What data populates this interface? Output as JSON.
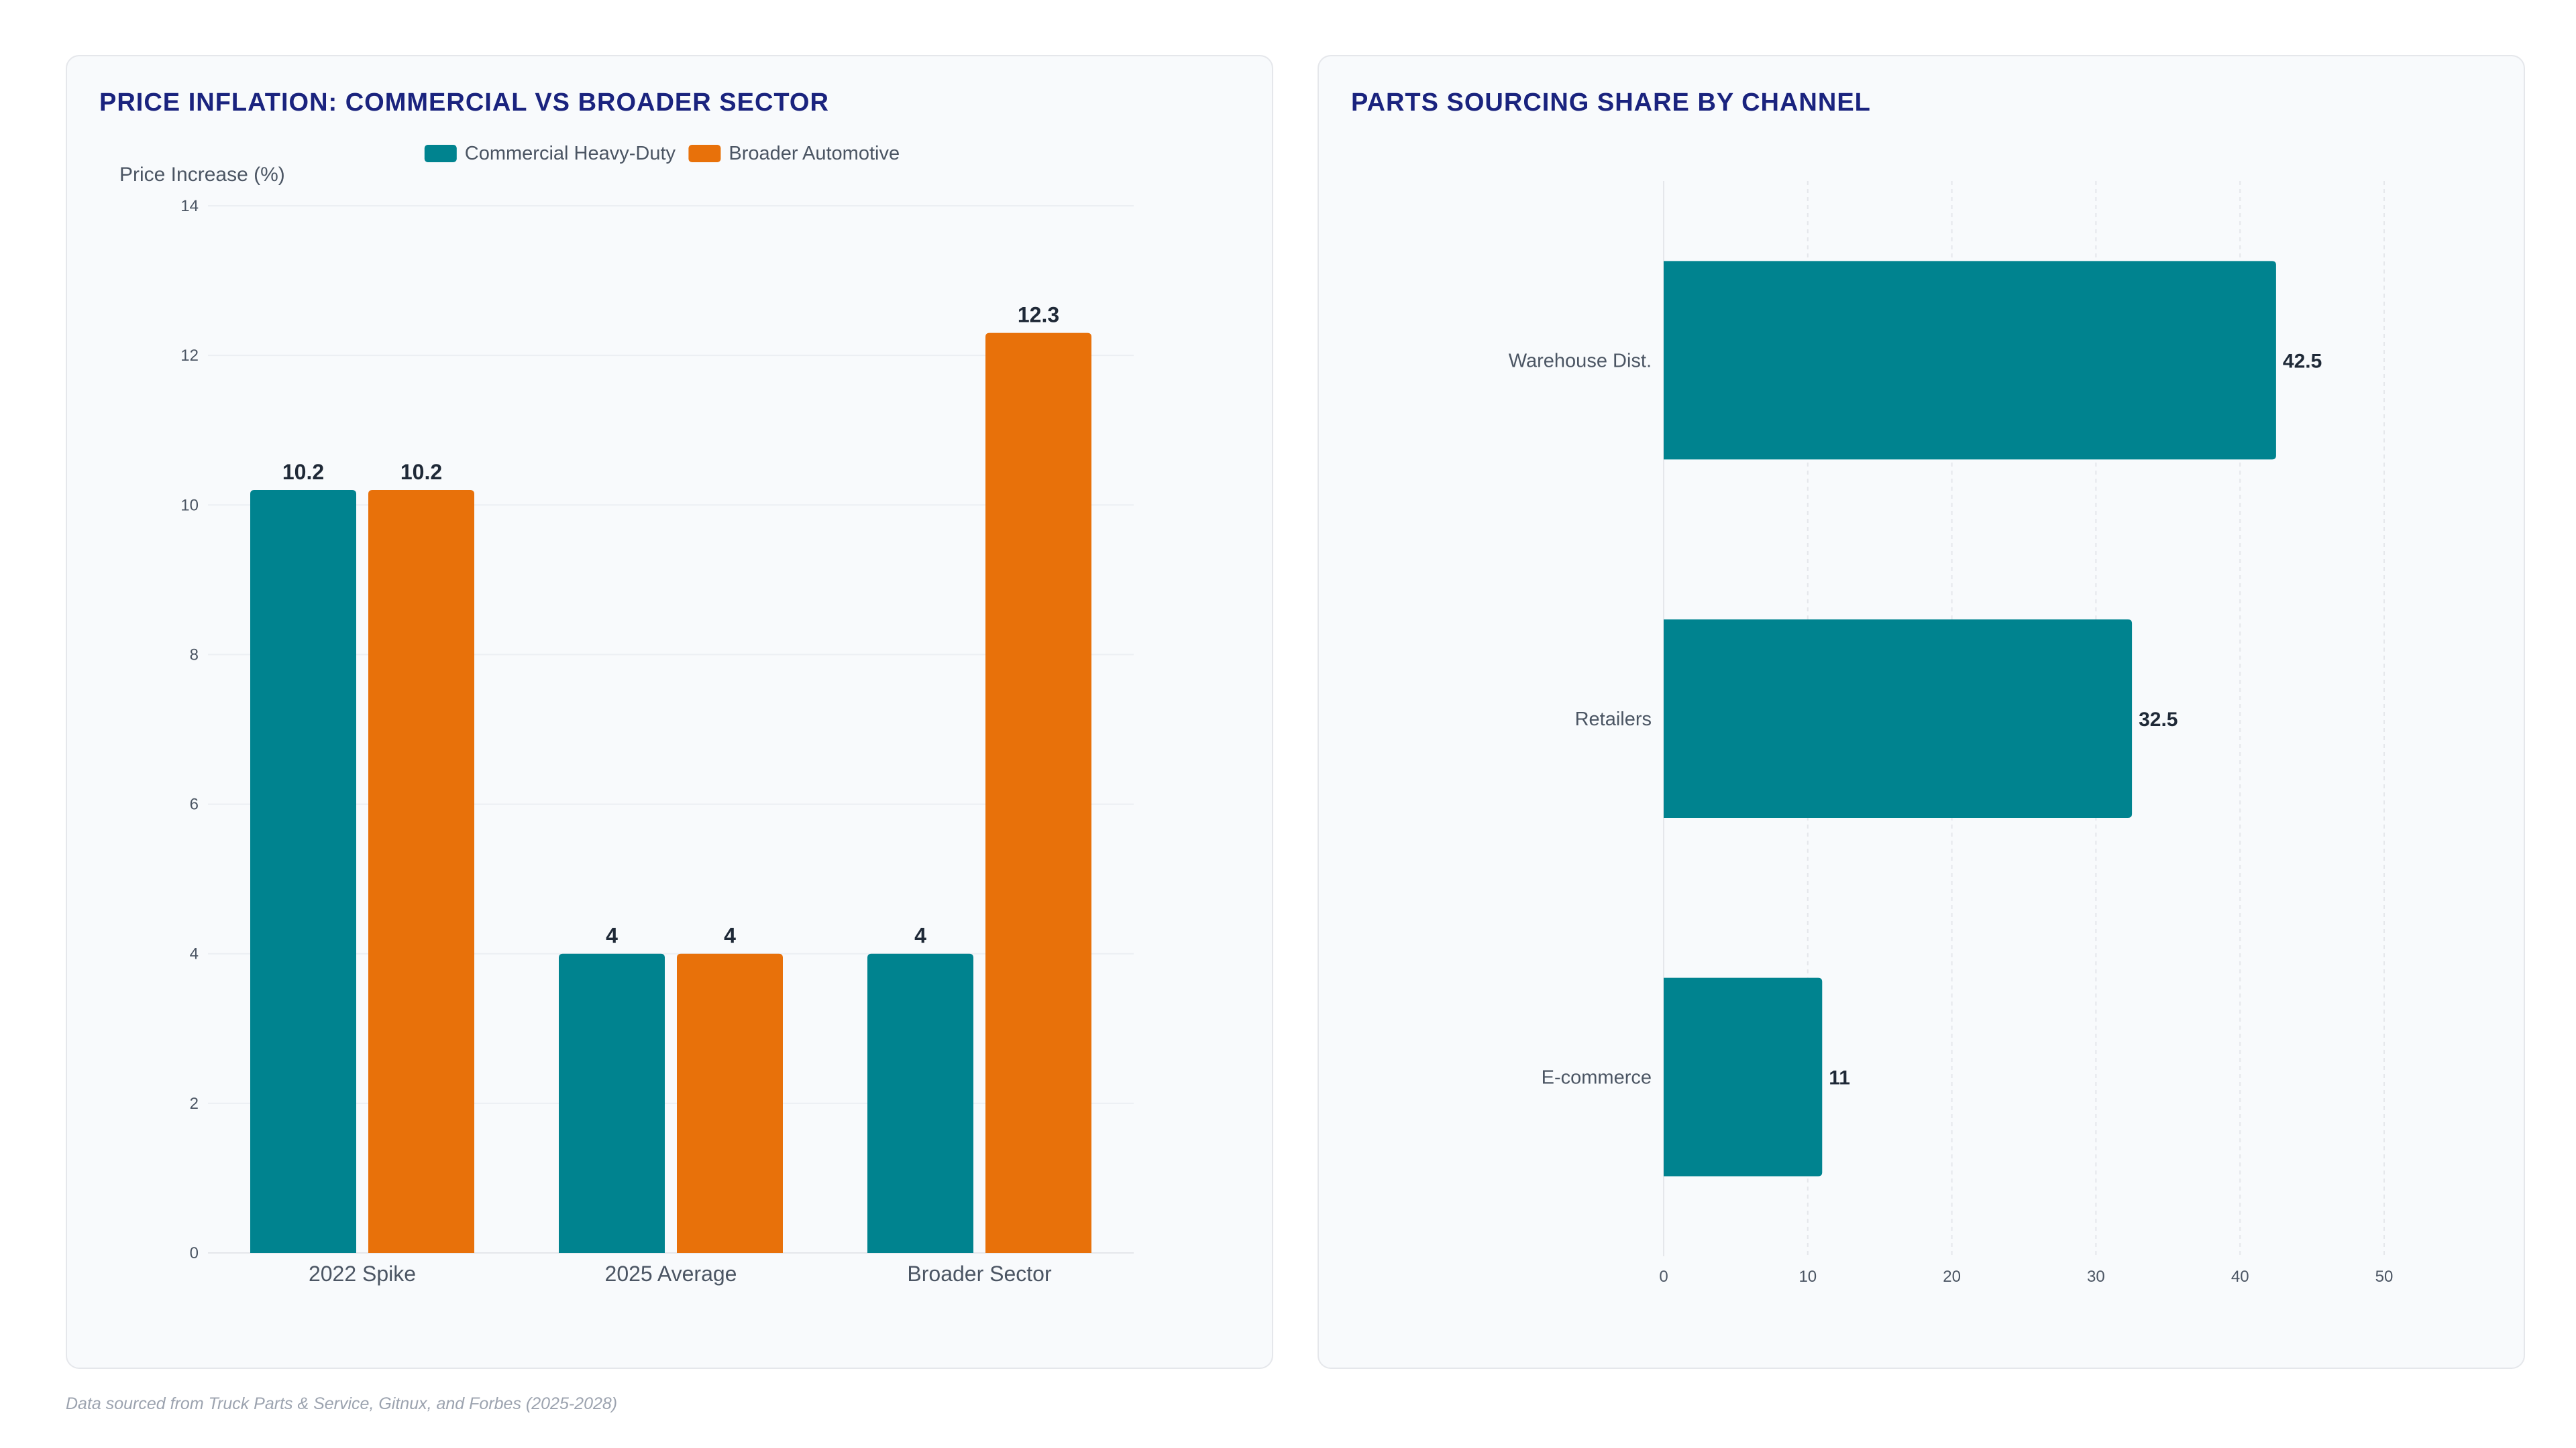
{
  "footer": {
    "source_note": "Data sourced from Truck Parts & Service, Gitnux, and Forbes (2025-2028)"
  },
  "chart_data": [
    {
      "type": "bar",
      "orientation": "vertical",
      "title": "PRICE INFLATION: COMMERCIAL VS BROADER SECTOR",
      "xlabel": "",
      "ylabel": "Price Increase (%)",
      "categories": [
        "2022 Spike",
        "2025 Average",
        "Broader Sector"
      ],
      "series": [
        {
          "name": "Commercial Heavy-Duty",
          "color": "#00838f",
          "values": [
            10.2,
            4,
            4
          ]
        },
        {
          "name": "Broader Automotive",
          "color": "#e8710a",
          "values": [
            10.2,
            4,
            12.3
          ]
        }
      ],
      "ylim": [
        0,
        14
      ],
      "yticks": [
        0,
        2,
        4,
        6,
        8,
        10,
        12,
        14
      ],
      "grid": true,
      "legend": "top-center",
      "data_labels": true
    },
    {
      "type": "bar",
      "orientation": "horizontal",
      "title": "PARTS SOURCING SHARE BY CHANNEL",
      "xlabel": "",
      "ylabel": "",
      "categories": [
        "Warehouse Dist.",
        "Retailers",
        "E-commerce"
      ],
      "series": [
        {
          "color": "#00838f",
          "values": [
            42.5,
            32.5,
            11
          ]
        }
      ],
      "xlim": [
        0,
        50
      ],
      "xticks": [
        0,
        10,
        20,
        30,
        40,
        50
      ],
      "grid": true,
      "legend": "none",
      "data_labels": true
    }
  ]
}
